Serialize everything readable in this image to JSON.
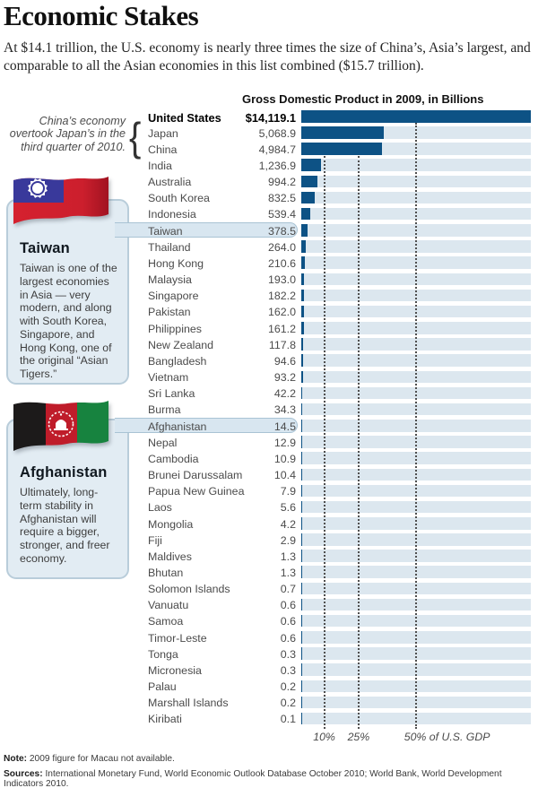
{
  "title": "Economic Stakes",
  "intro": "At $14.1 trillion, the U.S. economy is nearly three times the size of China’s, Asia’s largest, and comparable to all the Asian economies in this list combined ($15.7 trillion).",
  "annotation": {
    "text": "China’s economy overtook Japan’s in the third quarter of 2010.",
    "brace_glyph": "{"
  },
  "callouts": [
    {
      "id": "taiwan",
      "flag_icon": "taiwan-flag-icon",
      "title": "Taiwan",
      "body": "Taiwan is one of the largest economies in Asia — very modern, and along with South Korea, Singapore, and Hong Kong, one of the original “Asian Tigers.”"
    },
    {
      "id": "afghanistan",
      "flag_icon": "afghanistan-flag-icon",
      "title": "Afghanistan",
      "body": "Ultimately, long-term stability in Afghanistan will require a bigger, stronger, and freer economy."
    }
  ],
  "chart_data": {
    "type": "bar",
    "title": "Gross Domestic Product in 2009, in Billions",
    "value_unit": "billions of U.S. dollars",
    "max_reference": {
      "label": "United States",
      "value": 14119.1
    },
    "x_axis": {
      "ticks": [
        "10%",
        "25%",
        "50% of U.S. GDP"
      ],
      "tick_pcts": [
        10,
        25,
        50
      ]
    },
    "rows": [
      {
        "label": "United States",
        "value": "$14,119.1",
        "num": 14119.1,
        "emphasis": true
      },
      {
        "label": "Japan",
        "value": "5,068.9",
        "num": 5068.9
      },
      {
        "label": "China",
        "value": "4,984.7",
        "num": 4984.7
      },
      {
        "label": "India",
        "value": "1,236.9",
        "num": 1236.9
      },
      {
        "label": "Australia",
        "value": "994.2",
        "num": 994.2
      },
      {
        "label": "South Korea",
        "value": "832.5",
        "num": 832.5
      },
      {
        "label": "Indonesia",
        "value": "539.4",
        "num": 539.4
      },
      {
        "label": "Taiwan",
        "value": "378.5",
        "num": 378.5,
        "highlight": true
      },
      {
        "label": "Thailand",
        "value": "264.0",
        "num": 264.0
      },
      {
        "label": "Hong Kong",
        "value": "210.6",
        "num": 210.6
      },
      {
        "label": "Malaysia",
        "value": "193.0",
        "num": 193.0
      },
      {
        "label": "Singapore",
        "value": "182.2",
        "num": 182.2
      },
      {
        "label": "Pakistan",
        "value": "162.0",
        "num": 162.0
      },
      {
        "label": "Philippines",
        "value": "161.2",
        "num": 161.2
      },
      {
        "label": "New Zealand",
        "value": "117.8",
        "num": 117.8
      },
      {
        "label": "Bangladesh",
        "value": "94.6",
        "num": 94.6
      },
      {
        "label": "Vietnam",
        "value": "93.2",
        "num": 93.2
      },
      {
        "label": "Sri Lanka",
        "value": "42.2",
        "num": 42.2
      },
      {
        "label": "Burma",
        "value": "34.3",
        "num": 34.3
      },
      {
        "label": "Afghanistan",
        "value": "14.5",
        "num": 14.5,
        "highlight": true
      },
      {
        "label": "Nepal",
        "value": "12.9",
        "num": 12.9
      },
      {
        "label": "Cambodia",
        "value": "10.9",
        "num": 10.9
      },
      {
        "label": "Brunei Darussalam",
        "value": "10.4",
        "num": 10.4
      },
      {
        "label": "Papua New Guinea",
        "value": "7.9",
        "num": 7.9
      },
      {
        "label": "Laos",
        "value": "5.6",
        "num": 5.6
      },
      {
        "label": "Mongolia",
        "value": "4.2",
        "num": 4.2
      },
      {
        "label": "Fiji",
        "value": "2.9",
        "num": 2.9
      },
      {
        "label": "Maldives",
        "value": "1.3",
        "num": 1.3
      },
      {
        "label": "Bhutan",
        "value": "1.3",
        "num": 1.3
      },
      {
        "label": "Solomon Islands",
        "value": "0.7",
        "num": 0.7
      },
      {
        "label": "Vanuatu",
        "value": "0.6",
        "num": 0.6
      },
      {
        "label": "Samoa",
        "value": "0.6",
        "num": 0.6
      },
      {
        "label": "Timor-Leste",
        "value": "0.6",
        "num": 0.6
      },
      {
        "label": "Tonga",
        "value": "0.3",
        "num": 0.3
      },
      {
        "label": "Micronesia",
        "value": "0.3",
        "num": 0.3
      },
      {
        "label": "Palau",
        "value": "0.2",
        "num": 0.2
      },
      {
        "label": "Marshall Islands",
        "value": "0.2",
        "num": 0.2
      },
      {
        "label": "Kiribati",
        "value": "0.1",
        "num": 0.1
      }
    ]
  },
  "footer": {
    "note_label": "Note:",
    "note_text": "2009 figure for Macau not available.",
    "sources_label": "Sources:",
    "sources_text": "International Monetary Fund, World Economic Outlook Database October 2010; World Bank, World Development Indicators 2010."
  },
  "colors": {
    "bar": "#0d5285",
    "bar_track": "#dce7ef",
    "callout_fill": "#e2ecf3",
    "callout_border": "#b9cdda",
    "taiwan_flag_red": "#cc1f2d",
    "taiwan_flag_blue": "#39399b",
    "afghanistan_flag_black": "#1c1a1a",
    "afghanistan_flag_red": "#bf1c2a",
    "afghanistan_flag_green": "#17833f"
  }
}
